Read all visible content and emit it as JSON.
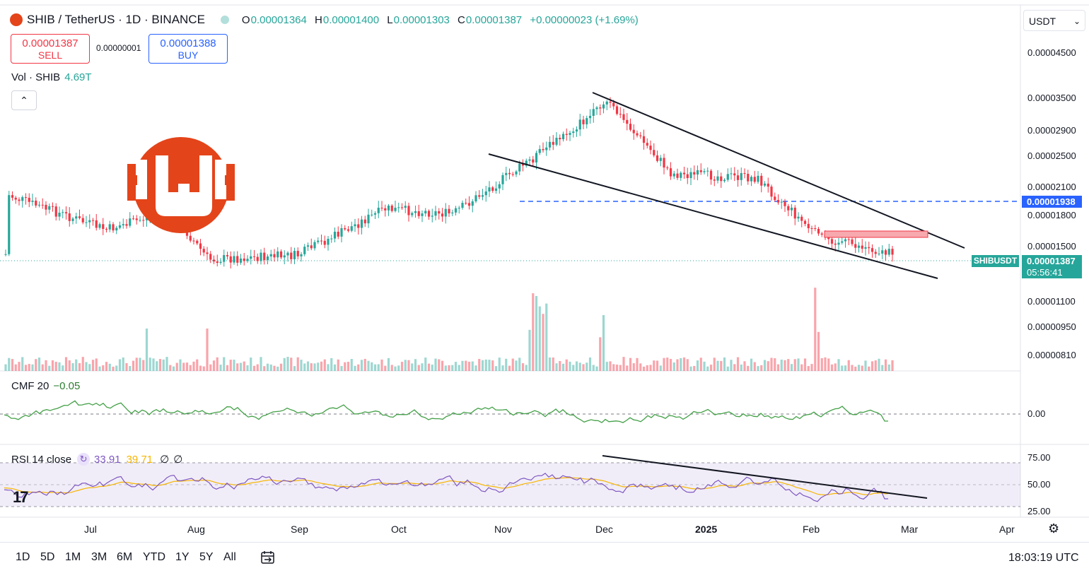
{
  "header": {
    "title": "SHIB / TetherUS · 1D · BINANCE",
    "ohlc": {
      "o_label": "O",
      "o": "0.00001364",
      "h_label": "H",
      "h": "0.00001400",
      "l_label": "L",
      "l": "0.00001303",
      "c_label": "C",
      "c": "0.00001387",
      "change": "+0.00000023 (+1.69%)"
    }
  },
  "trade": {
    "sell_price": "0.00001387",
    "sell_label": "SELL",
    "spread": "0.00000001",
    "buy_price": "0.00001388",
    "buy_label": "BUY"
  },
  "volume": {
    "label": "Vol · SHIB",
    "value": "4.69T"
  },
  "cmf": {
    "label": "CMF 20",
    "value": "−0.05"
  },
  "rsi": {
    "label": "RSI 14 close",
    "rsi": "33.91",
    "ma": "39.71",
    "extra1": "∅",
    "extra2": "∅"
  },
  "currency_select": "USDT",
  "price_axis": [
    "0.00004500",
    "0.00003500",
    "0.00002900",
    "0.00002500",
    "0.00002100",
    "0.00001800",
    "0.00001500",
    "0.00001100",
    "0.00000950",
    "0.00000810"
  ],
  "price_tags": {
    "level": "0.00001938",
    "symbol": "SHIBUSDT",
    "last": "0.00001387",
    "countdown": "05:56:41"
  },
  "cmf_axis": [
    "0.00"
  ],
  "rsi_axis": [
    "75.00",
    "50.00",
    "25.00"
  ],
  "time_axis": [
    {
      "label": "Jul",
      "bold": false
    },
    {
      "label": "Aug",
      "bold": false
    },
    {
      "label": "Sep",
      "bold": false
    },
    {
      "label": "Oct",
      "bold": false
    },
    {
      "label": "Nov",
      "bold": false
    },
    {
      "label": "Dec",
      "bold": false
    },
    {
      "label": "2025",
      "bold": true
    },
    {
      "label": "Feb",
      "bold": false
    },
    {
      "label": "Mar",
      "bold": false
    },
    {
      "label": "Apr",
      "bold": false
    }
  ],
  "ranges": [
    "1D",
    "5D",
    "1M",
    "3M",
    "6M",
    "YTD",
    "1Y",
    "5Y",
    "All"
  ],
  "clock": "18:03:19 UTC",
  "icons": {
    "settings": "gear-icon",
    "date_range": "calendar-icon",
    "collapse": "chevron-up-icon",
    "watermark": "shib-logo-icon"
  },
  "colors": {
    "up": "#26a69a",
    "down": "#f23645",
    "accent": "#2962ff",
    "rsi": "#7e57c2",
    "rsi_ma": "#f7b500",
    "cmf": "#43a047",
    "brand": "#e4441a"
  },
  "chart_data": [
    {
      "type": "candlestick",
      "title": "SHIB / TetherUS · 1D · BINANCE",
      "y_scale": "log",
      "x": [
        "Jul",
        "Aug",
        "Sep",
        "Oct",
        "Nov",
        "Dec",
        "2025",
        "Feb",
        "Mar",
        "Apr"
      ],
      "key_points": [
        {
          "period": "late Jun",
          "close": 1.95e-05
        },
        {
          "period": "early Jul",
          "close": 1.6e-05
        },
        {
          "period": "late Jul",
          "close": 1.78e-05
        },
        {
          "period": "early Aug",
          "close": 1.35e-05
        },
        {
          "period": "Sep",
          "close": 1.38e-05
        },
        {
          "period": "late Sep",
          "close": 1.8e-05
        },
        {
          "period": "Oct",
          "close": 1.75e-05
        },
        {
          "period": "mid Nov",
          "close": 2.45e-05
        },
        {
          "period": "early Dec",
          "close": 3.3e-05
        },
        {
          "period": "late Dec",
          "close": 2.2e-05
        },
        {
          "period": "mid Jan",
          "close": 2.15e-05
        },
        {
          "period": "early Feb",
          "close": 1.55e-05
        },
        {
          "period": "late Feb",
          "close": 1.39e-05
        }
      ],
      "last_price": 1.387e-05,
      "horizontal_level": 1.938e-05
    },
    {
      "type": "bar",
      "title": "Vol · SHIB",
      "last_value": "4.69T"
    },
    {
      "type": "line",
      "title": "CMF 20",
      "last_value": -0.05,
      "zero_line": 0.0
    },
    {
      "type": "line",
      "title": "RSI 14 close",
      "rsi": 33.91,
      "ma": 39.71,
      "bands": [
        30,
        50,
        70
      ],
      "axis": [
        25,
        50,
        75
      ]
    }
  ]
}
